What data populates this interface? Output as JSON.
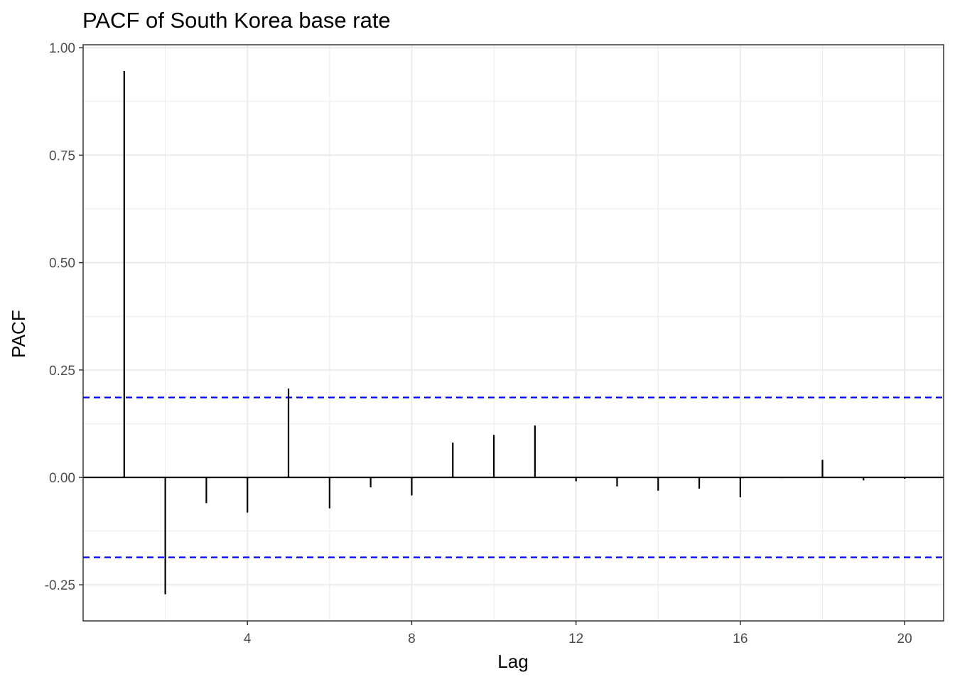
{
  "chart_data": {
    "type": "bar",
    "title": "PACF of South Korea base rate",
    "xlabel": "Lag",
    "ylabel": "PACF",
    "x": [
      1,
      2,
      3,
      4,
      5,
      6,
      7,
      8,
      9,
      10,
      11,
      12,
      13,
      14,
      15,
      16,
      17,
      18,
      19,
      20
    ],
    "values": [
      0.946,
      -0.272,
      -0.06,
      -0.082,
      0.207,
      -0.072,
      -0.023,
      -0.042,
      0.081,
      0.099,
      0.121,
      -0.009,
      -0.021,
      -0.031,
      -0.026,
      -0.046,
      -0.002,
      0.041,
      -0.007,
      -0.003
    ],
    "ci": [
      0.186,
      -0.186
    ],
    "xlim": [
      0.0,
      20.95
    ],
    "ylim": [
      -0.334,
      1.007
    ],
    "xticks": [
      4,
      8,
      12,
      16,
      20
    ],
    "xtick_labels": [
      "4",
      "8",
      "12",
      "16",
      "20"
    ],
    "yticks": [
      -0.25,
      0,
      0.25,
      0.5,
      0.75,
      1
    ],
    "ytick_labels": [
      "-0.25",
      "0.00",
      "0.25",
      "0.50",
      "0.75",
      "1.00"
    ],
    "grid": true,
    "colors": {
      "bars": "#000000",
      "confidence_bounds": "#0000ff",
      "grid": "#ebebeb"
    }
  }
}
